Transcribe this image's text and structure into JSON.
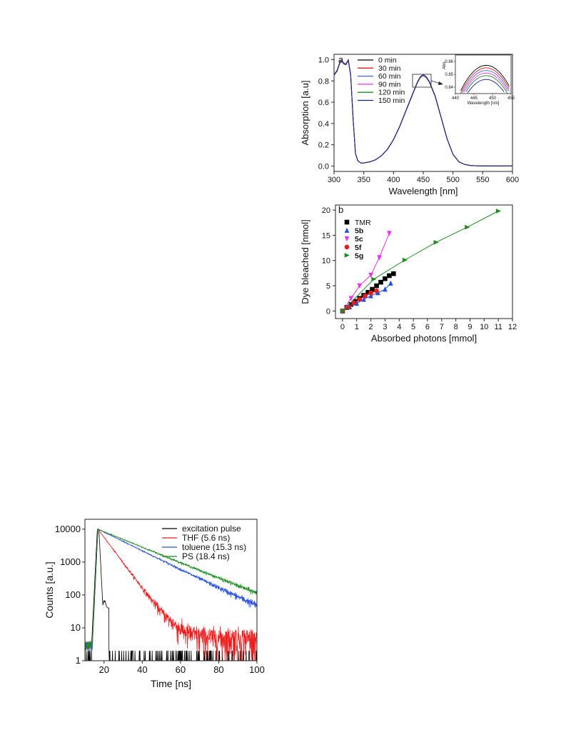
{
  "chart_data": [
    {
      "type": "line",
      "panel_label": "a",
      "xlabel": "Wavelength [nm]",
      "ylabel": "Absorption [a.u]",
      "xlim": [
        300,
        600
      ],
      "ylim": [
        -0.05,
        1.05
      ],
      "xticks": [
        300,
        350,
        400,
        450,
        500,
        550,
        600
      ],
      "yticks": [
        0.0,
        0.2,
        0.4,
        0.6,
        0.8,
        1.0
      ],
      "x": [
        300,
        305,
        310,
        313,
        316,
        320,
        324,
        328,
        332,
        336,
        340,
        345,
        350,
        360,
        370,
        380,
        390,
        400,
        410,
        420,
        430,
        440,
        445,
        450,
        455,
        460,
        470,
        480,
        490,
        500,
        510,
        520,
        530,
        540,
        550,
        560,
        580,
        600
      ],
      "base_y": [
        0.86,
        0.9,
        0.98,
        1.0,
        0.97,
        0.96,
        1.0,
        0.86,
        0.45,
        0.12,
        0.05,
        0.03,
        0.03,
        0.04,
        0.06,
        0.1,
        0.16,
        0.25,
        0.37,
        0.51,
        0.65,
        0.79,
        0.84,
        0.86,
        0.84,
        0.8,
        0.66,
        0.46,
        0.26,
        0.11,
        0.04,
        0.015,
        0.005,
        0.003,
        0.002,
        0.001,
        0.001,
        0.001
      ],
      "series": [
        {
          "name": "0 min",
          "color": "#000000",
          "scale": 1.0
        },
        {
          "name": "30 min",
          "color": "#e41a1c",
          "scale": 0.998
        },
        {
          "name": "60 min",
          "color": "#4169e1",
          "scale": 0.996
        },
        {
          "name": "90 min",
          "color": "#ee30ee",
          "scale": 0.994
        },
        {
          "name": "120 min",
          "color": "#1e8c1e",
          "scale": 0.992
        },
        {
          "name": "150 min",
          "color": "#1a1a8c",
          "scale": 0.99
        }
      ],
      "legend_position": "top-left",
      "inset": {
        "xlabel": "Wavelength [nm]",
        "ylabel": "Abs.",
        "xlim": [
          440,
          455
        ],
        "ylim": [
          0.835,
          0.865
        ],
        "xticks": [
          440,
          445,
          450,
          455
        ],
        "yticks": [
          0.84,
          0.85,
          0.86
        ],
        "peaks": [
          0.857,
          0.855,
          0.853,
          0.851,
          0.849,
          0.846
        ]
      }
    },
    {
      "type": "scatter",
      "panel_label": "b",
      "xlabel": "Absorbed photons [mmol]",
      "ylabel": "Dye bleached [nmol]",
      "xlim": [
        -0.5,
        12
      ],
      "ylim": [
        -1.5,
        21
      ],
      "xticks": [
        0,
        1,
        2,
        3,
        4,
        5,
        6,
        7,
        8,
        9,
        10,
        11,
        12
      ],
      "yticks": [
        0,
        5,
        10,
        15,
        20
      ],
      "legend_position": "top-left",
      "series": [
        {
          "name": "TMR",
          "color": "#000000",
          "marker": "square",
          "x": [
            0,
            0.3,
            0.6,
            0.9,
            1.2,
            1.5,
            1.8,
            2.1,
            2.4,
            2.7,
            3.0,
            3.3,
            3.6
          ],
          "y": [
            0,
            0.7,
            1.3,
            1.9,
            2.5,
            3.1,
            3.7,
            4.3,
            5.0,
            5.7,
            6.4,
            7.0,
            7.4
          ]
        },
        {
          "name": "5b",
          "color": "#2050e0",
          "marker": "triangle-up",
          "x": [
            0,
            0.5,
            1.0,
            1.5,
            2.0,
            2.5,
            3.0,
            3.4
          ],
          "y": [
            0,
            0.8,
            1.5,
            2.3,
            3.0,
            3.6,
            4.3,
            5.5
          ]
        },
        {
          "name": "5c",
          "color": "#ee30ee",
          "marker": "triangle-down",
          "x": [
            0,
            0.6,
            1.2,
            2.0,
            2.6,
            3.3
          ],
          "y": [
            0,
            2.5,
            5.0,
            7.1,
            10.6,
            15.4
          ]
        },
        {
          "name": "5f",
          "color": "#e41a1c",
          "marker": "circle",
          "x": [
            0,
            0.4,
            0.8,
            1.2,
            1.6,
            2.0,
            2.4
          ],
          "y": [
            0,
            0.8,
            1.6,
            2.3,
            3.0,
            3.6,
            4.0
          ]
        },
        {
          "name": "5g",
          "color": "#1e8c1e",
          "marker": "triangle-right",
          "x": [
            0,
            2.2,
            4.4,
            6.6,
            8.8,
            11.0
          ],
          "y": [
            0,
            6.3,
            10.1,
            13.6,
            16.6,
            19.8
          ]
        }
      ]
    },
    {
      "type": "line",
      "xlabel": "Time [ns]",
      "ylabel": "Counts [a.u.]",
      "xlim": [
        10,
        100
      ],
      "ylim": [
        1,
        20000
      ],
      "yscale": "log",
      "xticks": [
        20,
        40,
        60,
        80,
        100
      ],
      "yticks": [
        1,
        10,
        100,
        1000,
        10000
      ],
      "legend_position": "top-right",
      "series": [
        {
          "name": "excitation pulse",
          "color": "#000000"
        },
        {
          "name": "THF (5.6 ns)",
          "color": "#ee1c1c",
          "tau": 5.6
        },
        {
          "name": "toluene (15.3 ns)",
          "color": "#2a52e0",
          "tau": 15.3
        },
        {
          "name": "PS (18.4 ns)",
          "color": "#1e8c1e",
          "tau": 18.4
        }
      ]
    }
  ]
}
